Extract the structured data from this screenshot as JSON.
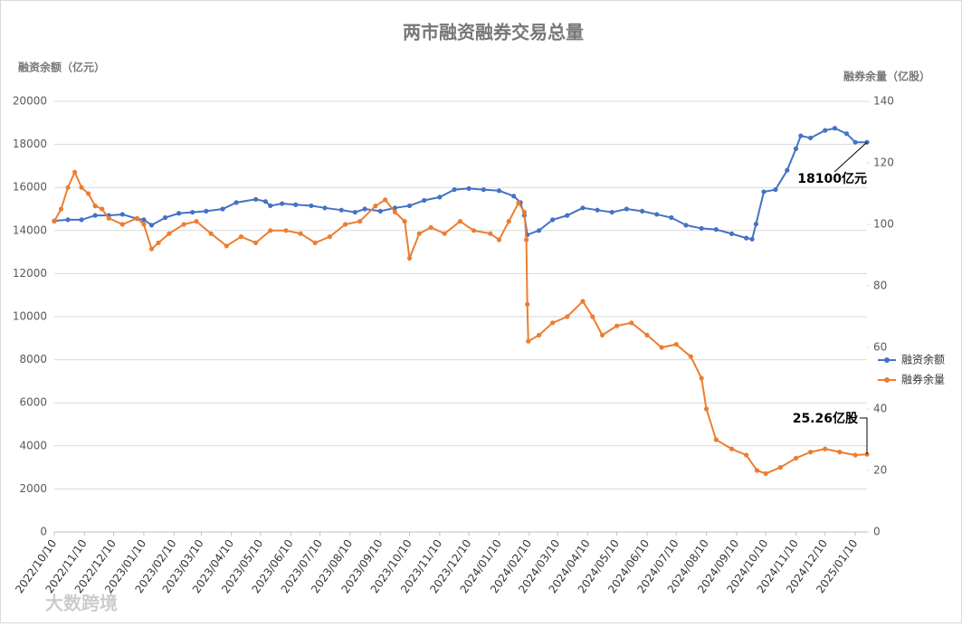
{
  "chart_data": {
    "type": "line",
    "title": "两市融资融券交易总量",
    "y_label": "融资余额（亿元）",
    "y2_label": "融券余量（亿股）",
    "watermark": "大数跨境",
    "xlim": [
      "2022/10/10",
      "2025/01/22"
    ],
    "xticks": [
      "2022/10/10",
      "2022/11/10",
      "2022/12/10",
      "2023/01/10",
      "2023/02/10",
      "2023/03/10",
      "2023/04/10",
      "2023/05/10",
      "2023/06/10",
      "2023/07/10",
      "2023/08/10",
      "2023/09/10",
      "2023/10/10",
      "2023/11/10",
      "2023/12/10",
      "2024/01/10",
      "2024/02/10",
      "2024/03/10",
      "2024/04/10",
      "2024/05/10",
      "2024/06/10",
      "2024/07/10",
      "2024/08/10",
      "2024/09/10",
      "2024/10/10",
      "2024/11/10",
      "2024/12/10",
      "2025/01/10"
    ],
    "ylim": [
      0,
      20000
    ],
    "yticks": [
      0,
      2000,
      4000,
      6000,
      8000,
      10000,
      12000,
      14000,
      16000,
      18000,
      20000
    ],
    "y2lim": [
      0,
      140
    ],
    "y2ticks": [
      0,
      20,
      40,
      60,
      80,
      100,
      120,
      140
    ],
    "grid": true,
    "legend": "right",
    "series": [
      {
        "name": "融资余额",
        "color": "#4472c4",
        "x": [
          "2022/10/10",
          "2022/10/24",
          "2022/11/07",
          "2022/11/21",
          "2022/12/05",
          "2022/12/19",
          "2023/01/03",
          "2023/01/10",
          "2023/01/18",
          "2023/02/01",
          "2023/02/15",
          "2023/03/01",
          "2023/03/15",
          "2023/04/01",
          "2023/04/15",
          "2023/05/05",
          "2023/05/15",
          "2023/05/20",
          "2023/06/01",
          "2023/06/15",
          "2023/07/01",
          "2023/07/15",
          "2023/08/01",
          "2023/08/15",
          "2023/08/25",
          "2023/09/10",
          "2023/09/25",
          "2023/10/10",
          "2023/10/25",
          "2023/11/10",
          "2023/11/25",
          "2023/12/10",
          "2023/12/25",
          "2024/01/10",
          "2024/01/25",
          "2024/02/01",
          "2024/02/05",
          "2024/02/08",
          "2024/02/20",
          "2024/03/05",
          "2024/03/20",
          "2024/04/05",
          "2024/04/20",
          "2024/05/05",
          "2024/05/20",
          "2024/06/05",
          "2024/06/20",
          "2024/07/05",
          "2024/07/20",
          "2024/08/05",
          "2024/08/20",
          "2024/09/05",
          "2024/09/20",
          "2024/09/26",
          "2024/09/30",
          "2024/10/08",
          "2024/10/20",
          "2024/11/01",
          "2024/11/10",
          "2024/11/15",
          "2024/11/25",
          "2024/12/10",
          "2024/12/20",
          "2025/01/01",
          "2025/01/10",
          "2025/01/22"
        ],
        "values": [
          14450,
          14500,
          14500,
          14700,
          14700,
          14750,
          14550,
          14500,
          14250,
          14600,
          14800,
          14850,
          14900,
          15000,
          15300,
          15450,
          15350,
          15150,
          15250,
          15200,
          15150,
          15050,
          14950,
          14850,
          15000,
          14900,
          15050,
          15150,
          15400,
          15550,
          15900,
          15950,
          15900,
          15850,
          15600,
          15300,
          14700,
          13800,
          14000,
          14500,
          14700,
          15050,
          14950,
          14850,
          15000,
          14900,
          14750,
          14600,
          14250,
          14100,
          14050,
          13850,
          13650,
          13600,
          14300,
          15800,
          15900,
          16800,
          17800,
          18400,
          18300,
          18650,
          18750,
          18500,
          18100,
          18100
        ]
      },
      {
        "name": "融券余量",
        "color": "#ed7d31",
        "axis": "y2",
        "x": [
          "2022/10/10",
          "2022/10/17",
          "2022/10/24",
          "2022/10/31",
          "2022/11/07",
          "2022/11/14",
          "2022/11/21",
          "2022/11/28",
          "2022/12/05",
          "2022/12/19",
          "2023/01/03",
          "2023/01/10",
          "2023/01/18",
          "2023/01/25",
          "2023/02/05",
          "2023/02/20",
          "2023/03/05",
          "2023/03/20",
          "2023/04/05",
          "2023/04/20",
          "2023/05/05",
          "2023/05/20",
          "2023/06/05",
          "2023/06/20",
          "2023/07/05",
          "2023/07/20",
          "2023/08/05",
          "2023/08/20",
          "2023/09/05",
          "2023/09/15",
          "2023/09/25",
          "2023/10/05",
          "2023/10/10",
          "2023/10/20",
          "2023/11/01",
          "2023/11/15",
          "2023/12/01",
          "2023/12/15",
          "2024/01/01",
          "2024/01/10",
          "2024/01/20",
          "2024/01/30",
          "2024/02/05",
          "2024/02/07",
          "2024/02/08",
          "2024/02/09",
          "2024/02/20",
          "2024/03/05",
          "2024/03/20",
          "2024/04/05",
          "2024/04/15",
          "2024/04/25",
          "2024/05/10",
          "2024/05/25",
          "2024/06/10",
          "2024/06/25",
          "2024/07/10",
          "2024/07/25",
          "2024/08/05",
          "2024/08/10",
          "2024/08/20",
          "2024/09/05",
          "2024/09/20",
          "2024/10/01",
          "2024/10/10",
          "2024/10/25",
          "2024/11/10",
          "2024/11/25",
          "2024/12/10",
          "2024/12/25",
          "2025/01/10",
          "2025/01/22"
        ],
        "values": [
          101,
          105,
          112,
          117,
          112,
          110,
          106,
          105,
          102,
          100,
          102,
          100,
          92,
          94,
          97,
          100,
          101,
          97,
          93,
          96,
          94,
          98,
          98,
          97,
          94,
          96,
          100,
          101,
          106,
          108,
          104,
          101,
          89,
          97,
          99,
          97,
          101,
          98,
          97,
          95,
          101,
          107,
          104,
          95,
          74,
          62,
          64,
          68,
          70,
          75,
          70,
          64,
          67,
          68,
          64,
          60,
          61,
          57,
          50,
          40,
          30,
          27,
          25,
          20,
          19,
          21,
          24,
          26,
          27,
          26,
          25,
          25.26
        ]
      }
    ],
    "annotations": [
      {
        "text": "18100亿元",
        "series": 0
      },
      {
        "text": "25.26亿股",
        "series": 1
      }
    ]
  }
}
